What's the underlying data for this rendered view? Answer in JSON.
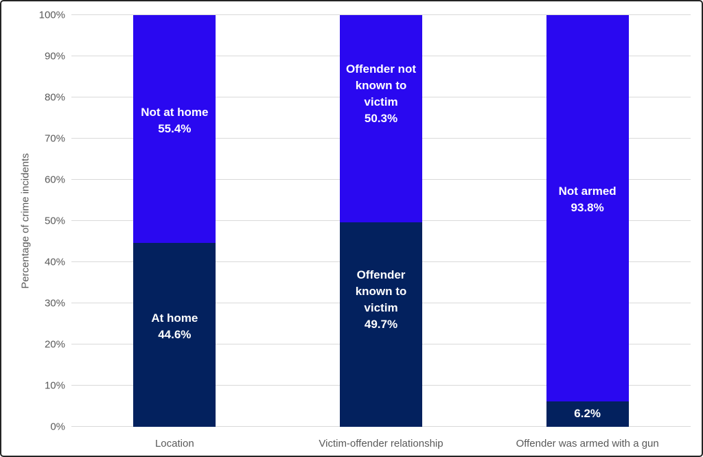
{
  "chart_data": {
    "type": "bar",
    "subtype": "stacked-column",
    "title": "",
    "xlabel": "",
    "ylabel": "Percentage of crime incidents",
    "ylim": [
      0,
      100
    ],
    "ytick_step": 10,
    "yticks": [
      "0%",
      "10%",
      "20%",
      "30%",
      "40%",
      "50%",
      "60%",
      "70%",
      "80%",
      "90%",
      "100%"
    ],
    "grid": true,
    "legend_position": "none",
    "categories": [
      "Location",
      "Victim-offender relationship",
      "Offender was armed with a gun"
    ],
    "series": [
      {
        "name": "bottom",
        "color": "#03215E",
        "values": [
          44.6,
          49.7,
          6.2
        ],
        "labels": [
          [
            "At home",
            "44.6%"
          ],
          [
            "Offender",
            "known to",
            "victim",
            "49.7%"
          ],
          [
            "6.2%"
          ]
        ]
      },
      {
        "name": "top",
        "color": "#2A08F0",
        "values": [
          55.4,
          50.3,
          93.8
        ],
        "labels": [
          [
            "Not at home",
            "55.4%"
          ],
          [
            "Offender not",
            "known to",
            "victim",
            "50.3%"
          ],
          [
            "Not armed",
            "93.8%"
          ]
        ]
      }
    ],
    "data_label_color": "#FFFFFF",
    "axis_text_color": "#595959",
    "gridline_color": "#D9D9D9",
    "background_color": "#FFFFFF",
    "border_color": "#242424"
  }
}
